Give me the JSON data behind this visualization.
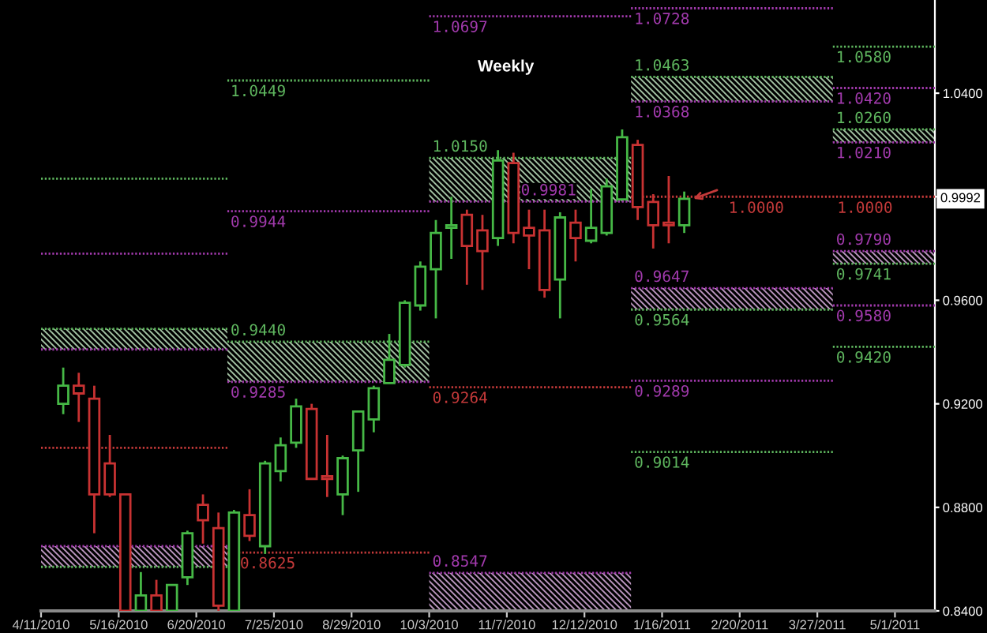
{
  "chart_data": {
    "type": "candlestick",
    "title": "Weekly",
    "x": [
      "2010-04-21",
      "2010-04-28",
      "2010-05-05",
      "2010-05-12",
      "2010-05-19",
      "2010-05-26",
      "2010-06-02",
      "2010-06-09",
      "2010-06-16",
      "2010-06-23",
      "2010-06-30",
      "2010-07-07",
      "2010-07-14",
      "2010-07-21",
      "2010-07-28",
      "2010-08-04",
      "2010-08-11",
      "2010-08-18",
      "2010-08-25",
      "2010-09-01",
      "2010-09-08",
      "2010-09-15",
      "2010-09-22",
      "2010-09-29",
      "2010-10-06",
      "2010-10-13",
      "2010-10-20",
      "2010-10-27",
      "2010-11-03",
      "2010-11-10",
      "2010-11-17",
      "2010-11-24",
      "2010-12-01",
      "2010-12-08",
      "2010-12-15",
      "2010-12-22",
      "2010-12-29",
      "2011-01-05",
      "2011-01-12",
      "2011-01-19",
      "2011-01-26"
    ],
    "ohlc": [
      [
        0.92,
        0.934,
        0.916,
        0.927
      ],
      [
        0.927,
        0.932,
        0.913,
        0.924
      ],
      [
        0.922,
        0.927,
        0.87,
        0.885
      ],
      [
        0.897,
        0.908,
        0.884,
        0.885
      ],
      [
        0.885,
        0.885,
        0.84,
        0.84
      ],
      [
        0.84,
        0.855,
        0.84,
        0.846
      ],
      [
        0.846,
        0.852,
        0.84,
        0.84
      ],
      [
        0.84,
        0.85,
        0.84,
        0.85
      ],
      [
        0.853,
        0.871,
        0.85,
        0.87
      ],
      [
        0.881,
        0.885,
        0.866,
        0.875
      ],
      [
        0.872,
        0.878,
        0.84,
        0.842
      ],
      [
        0.84,
        0.879,
        0.84,
        0.878
      ],
      [
        0.877,
        0.887,
        0.867,
        0.869
      ],
      [
        0.865,
        0.898,
        0.862,
        0.897
      ],
      [
        0.894,
        0.907,
        0.89,
        0.904
      ],
      [
        0.905,
        0.922,
        0.903,
        0.919
      ],
      [
        0.918,
        0.92,
        0.891,
        0.891
      ],
      [
        0.892,
        0.908,
        0.884,
        0.891
      ],
      [
        0.885,
        0.9,
        0.877,
        0.899
      ],
      [
        0.902,
        0.917,
        0.886,
        0.917
      ],
      [
        0.914,
        0.927,
        0.909,
        0.926
      ],
      [
        0.928,
        0.947,
        0.928,
        0.937
      ],
      [
        0.935,
        0.96,
        0.934,
        0.959
      ],
      [
        0.958,
        0.975,
        0.956,
        0.973
      ],
      [
        0.972,
        0.991,
        0.953,
        0.986
      ],
      [
        0.988,
        1.0,
        0.976,
        0.989
      ],
      [
        0.993,
        0.995,
        0.966,
        0.981
      ],
      [
        0.987,
        0.993,
        0.964,
        0.979
      ],
      [
        0.984,
        1.018,
        0.981,
        1.014
      ],
      [
        1.013,
        1.017,
        0.982,
        0.986
      ],
      [
        0.988,
        0.995,
        0.972,
        0.985
      ],
      [
        0.987,
        0.995,
        0.961,
        0.964
      ],
      [
        0.968,
        0.994,
        0.953,
        0.992
      ],
      [
        0.99,
        0.995,
        0.975,
        0.984
      ],
      [
        0.983,
        1.003,
        0.982,
        0.988
      ],
      [
        0.986,
        1.007,
        0.985,
        1.004
      ],
      [
        0.999,
        1.026,
        0.999,
        1.023
      ],
      [
        1.02,
        1.022,
        0.991,
        0.996
      ],
      [
        0.998,
        1.001,
        0.98,
        0.989
      ],
      [
        0.99,
        1.008,
        0.982,
        0.989
      ],
      [
        0.989,
        1.002,
        0.986,
        0.9992
      ]
    ],
    "colors": [
      "#46b846",
      "#c83232",
      "#c83232",
      "#c83232",
      "#c83232",
      "#46b846",
      "#c83232",
      "#46b846",
      "#46b846",
      "#c83232",
      "#c83232",
      "#46b846",
      "#c83232",
      "#46b846",
      "#46b846",
      "#46b846",
      "#c83232",
      "#c83232",
      "#46b846",
      "#46b846",
      "#46b846",
      "#46b846",
      "#46b846",
      "#46b846",
      "#46b846",
      "#46b846",
      "#c83232",
      "#c83232",
      "#46b846",
      "#c83232",
      "#c83232",
      "#c83232",
      "#46b846",
      "#c83232",
      "#46b846",
      "#46b846",
      "#46b846",
      "#c83232",
      "#c83232",
      "#c83232",
      "#46b846"
    ],
    "series": [
      {
        "type": "line",
        "color": "#5fb75f",
        "line_style": "dotted",
        "x": [
          "2010-04-11",
          "2010-07-04"
        ],
        "values": [
          1.007,
          1.007
        ]
      },
      {
        "type": "line",
        "color": "#a23aad",
        "line_style": "dotted",
        "x": [
          "2010-04-11",
          "2010-07-04"
        ],
        "values": [
          0.978,
          0.978
        ]
      },
      {
        "type": "line",
        "color": "#5fb75f",
        "line_style": "dotted",
        "x": [
          "2010-04-11",
          "2010-07-04"
        ],
        "values": [
          0.949,
          0.949
        ],
        "lower": [
          0.941,
          0.941
        ],
        "upper": [
          0.949,
          0.949
        ]
      },
      {
        "type": "line",
        "color": "#a23aad",
        "line_style": "dotted",
        "x": [
          "2010-04-11",
          "2010-07-04"
        ],
        "values": [
          0.941,
          0.941
        ]
      },
      {
        "type": "line",
        "color": "#c53a3a",
        "line_style": "dotted",
        "x": [
          "2010-04-11",
          "2010-07-04"
        ],
        "values": [
          0.903,
          0.903
        ]
      },
      {
        "type": "line",
        "color": "#a23aad",
        "line_style": "dotted",
        "x": [
          "2010-04-11",
          "2010-07-04"
        ],
        "values": [
          0.865,
          0.865
        ],
        "lower": [
          0.857,
          0.857
        ],
        "upper": [
          0.865,
          0.865
        ]
      },
      {
        "type": "line",
        "color": "#5fb75f",
        "line_style": "dotted",
        "x": [
          "2010-04-11",
          "2010-07-04"
        ],
        "values": [
          0.857,
          0.857
        ]
      },
      {
        "type": "line",
        "name": "1.0449",
        "color": "#5fb75f",
        "line_style": "dotted",
        "x": [
          "2010-07-04",
          "2010-10-03"
        ],
        "values": [
          1.0449,
          1.0449
        ]
      },
      {
        "type": "line",
        "name": "0.9944",
        "color": "#a23aad",
        "line_style": "dotted",
        "x": [
          "2010-07-04",
          "2010-10-03"
        ],
        "values": [
          0.9944,
          0.9944
        ]
      },
      {
        "type": "line",
        "name": "0.9440",
        "color": "#5fb75f",
        "line_style": "dotted",
        "x": [
          "2010-07-04",
          "2010-10-03"
        ],
        "values": [
          0.944,
          0.944
        ],
        "lower": [
          0.9285,
          0.9285
        ],
        "upper": [
          0.944,
          0.944
        ]
      },
      {
        "type": "line",
        "name": "0.9285",
        "color": "#a23aad",
        "line_style": "dotted",
        "x": [
          "2010-07-04",
          "2010-10-03"
        ],
        "values": [
          0.9285,
          0.9285
        ]
      },
      {
        "type": "line",
        "name": "0.8625",
        "color": "#c53a3a",
        "line_style": "dotted",
        "x": [
          "2010-07-04",
          "2010-10-03"
        ],
        "values": [
          0.8625,
          0.8625
        ]
      },
      {
        "type": "line",
        "name": "1.0697",
        "color": "#a23aad",
        "line_style": "dotted",
        "x": [
          "2010-10-03",
          "2011-01-02"
        ],
        "values": [
          1.0697,
          1.0697
        ]
      },
      {
        "type": "line",
        "name": "1.0150",
        "color": "#5fb75f",
        "line_style": "dotted",
        "x": [
          "2010-10-03",
          "2011-01-02"
        ],
        "values": [
          1.015,
          1.015
        ],
        "lower": [
          0.9981,
          0.9981
        ],
        "upper": [
          1.015,
          1.015
        ]
      },
      {
        "type": "line",
        "name": "0.9981",
        "color": "#a23aad",
        "line_style": "dotted",
        "x": [
          "2010-10-03",
          "2011-01-02"
        ],
        "values": [
          0.9981,
          0.9981
        ]
      },
      {
        "type": "line",
        "name": "0.9264",
        "color": "#c53a3a",
        "line_style": "dotted",
        "x": [
          "2010-10-03",
          "2011-01-02"
        ],
        "values": [
          0.9264,
          0.9264
        ]
      },
      {
        "type": "line",
        "name": "0.8547",
        "color": "#a23aad",
        "line_style": "dotted",
        "x": [
          "2010-10-03",
          "2011-01-02"
        ],
        "values": [
          0.8547,
          0.8547
        ],
        "lower": [
          0.84,
          0.84
        ],
        "upper": [
          0.8547,
          0.8547
        ]
      },
      {
        "type": "line",
        "name": "1.0728",
        "color": "#a23aad",
        "line_style": "dotted",
        "x": [
          "2011-01-02",
          "2011-04-03"
        ],
        "values": [
          1.0728,
          1.0728
        ]
      },
      {
        "type": "line",
        "name": "1.0463",
        "color": "#5fb75f",
        "line_style": "dotted",
        "x": [
          "2011-01-02",
          "2011-04-03"
        ],
        "values": [
          1.0463,
          1.0463
        ],
        "lower": [
          1.0368,
          1.0368
        ],
        "upper": [
          1.0463,
          1.0463
        ]
      },
      {
        "type": "line",
        "name": "1.0368",
        "color": "#a23aad",
        "line_style": "dotted",
        "x": [
          "2011-01-02",
          "2011-04-03"
        ],
        "values": [
          1.0368,
          1.0368
        ]
      },
      {
        "type": "line",
        "color": "#c53a3a",
        "line_style": "dotted",
        "x": [
          "2011-01-02",
          "2011-05-19"
        ],
        "values": [
          1.0,
          1.0
        ]
      },
      {
        "type": "line",
        "name": "0.9647",
        "color": "#a23aad",
        "line_style": "dotted",
        "x": [
          "2011-01-02",
          "2011-04-03"
        ],
        "values": [
          0.9647,
          0.9647
        ],
        "lower": [
          0.9564,
          0.9564
        ],
        "upper": [
          0.9647,
          0.9647
        ]
      },
      {
        "type": "line",
        "name": "0.9564",
        "color": "#5fb75f",
        "line_style": "dotted",
        "x": [
          "2011-01-02",
          "2011-04-03"
        ],
        "values": [
          0.9564,
          0.9564
        ]
      },
      {
        "type": "line",
        "name": "0.9289",
        "color": "#a23aad",
        "line_style": "dotted",
        "x": [
          "2011-01-02",
          "2011-04-03"
        ],
        "values": [
          0.9289,
          0.9289
        ]
      },
      {
        "type": "line",
        "name": "0.9014",
        "color": "#5fb75f",
        "line_style": "dotted",
        "x": [
          "2011-01-02",
          "2011-04-03"
        ],
        "values": [
          0.9014,
          0.9014
        ]
      },
      {
        "type": "line",
        "name": "1.0580",
        "color": "#5fb75f",
        "line_style": "dotted",
        "x": [
          "2011-04-03",
          "2011-05-19"
        ],
        "values": [
          1.058,
          1.058
        ]
      },
      {
        "type": "line",
        "name": "1.0420",
        "color": "#a23aad",
        "line_style": "dotted",
        "x": [
          "2011-04-03",
          "2011-05-19"
        ],
        "values": [
          1.042,
          1.042
        ]
      },
      {
        "type": "line",
        "name": "1.0260",
        "color": "#5fb75f",
        "line_style": "dotted",
        "x": [
          "2011-04-03",
          "2011-05-19"
        ],
        "values": [
          1.026,
          1.026
        ],
        "lower": [
          1.021,
          1.021
        ],
        "upper": [
          1.026,
          1.026
        ]
      },
      {
        "type": "line",
        "name": "1.0210",
        "color": "#a23aad",
        "line_style": "dotted",
        "x": [
          "2011-04-03",
          "2011-05-19"
        ],
        "values": [
          1.021,
          1.021
        ]
      },
      {
        "type": "line",
        "name": "0.9790",
        "color": "#a23aad",
        "line_style": "dotted",
        "x": [
          "2011-04-03",
          "2011-05-19"
        ],
        "values": [
          0.979,
          0.979
        ],
        "lower": [
          0.9741,
          0.9741
        ],
        "upper": [
          0.979,
          0.979
        ]
      },
      {
        "type": "line",
        "name": "0.9741",
        "color": "#5fb75f",
        "line_style": "dotted",
        "x": [
          "2011-04-03",
          "2011-05-19"
        ],
        "values": [
          0.9741,
          0.9741
        ]
      },
      {
        "type": "line",
        "name": "0.9580",
        "color": "#a23aad",
        "line_style": "dotted",
        "x": [
          "2011-04-03",
          "2011-05-19"
        ],
        "values": [
          0.958,
          0.958
        ]
      },
      {
        "type": "line",
        "name": "0.9420",
        "color": "#5fb75f",
        "line_style": "dotted",
        "x": [
          "2011-04-03",
          "2011-05-19"
        ],
        "values": [
          0.942,
          0.942
        ]
      }
    ],
    "xlim": [
      "2010-04-11",
      "2011-05-19"
    ],
    "ylim": [
      0.84,
      1.076
    ],
    "xticks": [
      {
        "value": "2010-04-11",
        "label": "4/11/2010"
      },
      {
        "value": "2010-05-16",
        "label": "5/16/2010"
      },
      {
        "value": "2010-06-20",
        "label": "6/20/2010"
      },
      {
        "value": "2010-07-25",
        "label": "7/25/2010"
      },
      {
        "value": "2010-08-29",
        "label": "8/29/2010"
      },
      {
        "value": "2010-10-03",
        "label": "10/3/2010"
      },
      {
        "value": "2010-11-07",
        "label": "11/7/2010"
      },
      {
        "value": "2010-12-12",
        "label": "12/12/2010"
      },
      {
        "value": "2011-01-16",
        "label": "1/16/2011"
      },
      {
        "value": "2011-02-20",
        "label": "2/20/2011"
      },
      {
        "value": "2011-03-27",
        "label": "3/27/2011"
      },
      {
        "value": "2011-05-01",
        "label": "5/1/2011"
      }
    ],
    "yticks": [
      {
        "value": 0.84,
        "label": "0.8400"
      },
      {
        "value": 0.88,
        "label": "0.8800"
      },
      {
        "value": 0.92,
        "label": "0.9200"
      },
      {
        "value": 0.96,
        "label": "0.9600"
      },
      {
        "value": 1.0,
        "label": null
      },
      {
        "value": 1.04,
        "label": "1.0400"
      }
    ],
    "annotations": [
      {
        "text": "0.9992",
        "y": 0.9992
      },
      {
        "text": "1.0000",
        "x": "2011-02-13",
        "y": 1.0
      },
      {
        "text": "1.0000",
        "x": "2011-04-03",
        "y": 1.0
      }
    ]
  }
}
